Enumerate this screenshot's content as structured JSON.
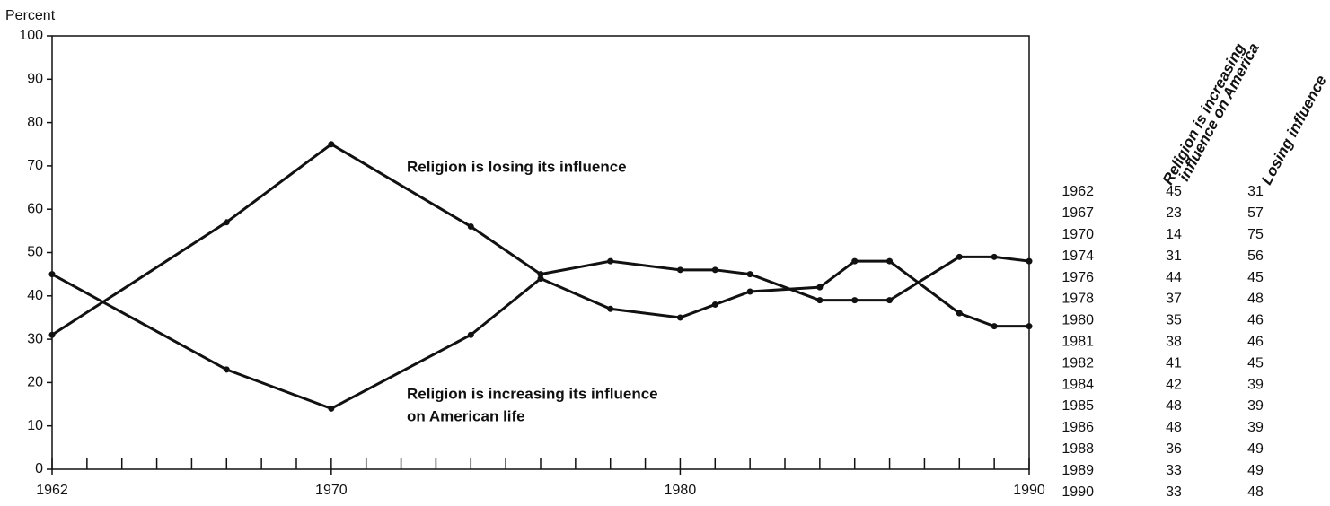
{
  "chart_data": {
    "type": "line",
    "y_label": "Percent",
    "x": [
      1962,
      1967,
      1970,
      1974,
      1976,
      1978,
      1980,
      1981,
      1982,
      1984,
      1985,
      1986,
      1988,
      1989,
      1990
    ],
    "series": [
      {
        "label": [
          "Religion is increasing its influence",
          "on American life"
        ],
        "color": "#111111",
        "values": [
          45,
          23,
          14,
          31,
          44,
          37,
          35,
          38,
          41,
          42,
          48,
          48,
          36,
          33,
          33
        ]
      },
      {
        "label": [
          "Religion is losing its influence"
        ],
        "color": "#111111",
        "values": [
          31,
          57,
          75,
          56,
          45,
          48,
          46,
          46,
          45,
          39,
          39,
          39,
          49,
          49,
          48
        ]
      }
    ],
    "xlim": [
      1962,
      1990
    ],
    "xticks": [
      1962,
      1970,
      1980,
      1990
    ],
    "ylim": [
      0,
      100
    ],
    "yticks": [
      0,
      10,
      20,
      30,
      40,
      50,
      60,
      70,
      80,
      90,
      100
    ],
    "table_headers": [
      [
        "Religion is increasing",
        "influence on America"
      ],
      [
        "Losing influence"
      ]
    ]
  }
}
